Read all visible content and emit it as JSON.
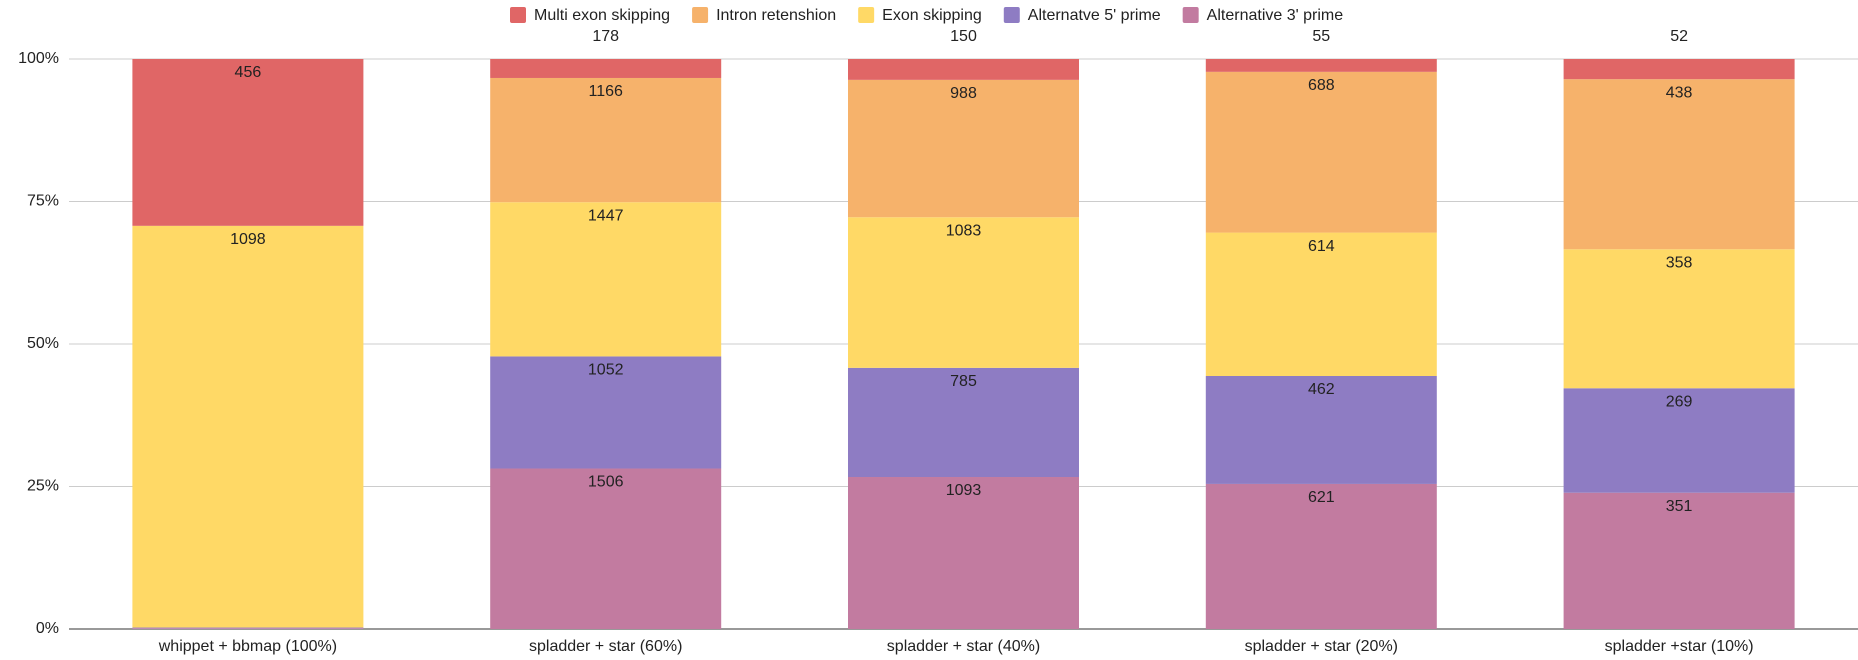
{
  "chart_data": {
    "type": "bar",
    "stacking": "percent",
    "categories": [
      "whippet + bbmap (100%)",
      "spladder + star (60%)",
      "spladder + star (40%)",
      "spladder + star (20%)",
      "spladder +star (10%)"
    ],
    "series": [
      {
        "name": "Multi exon skipping",
        "color": "#e06666",
        "values": [
          456,
          178,
          150,
          55,
          52
        ]
      },
      {
        "name": "Intron retenshion",
        "color": "#f6b26b",
        "values": [
          0,
          1166,
          988,
          688,
          438
        ]
      },
      {
        "name": "Exon skipping",
        "color": "#ffd966",
        "values": [
          1098,
          1447,
          1083,
          614,
          358
        ]
      },
      {
        "name": "Alternatve 5' prime",
        "color": "#8e7cc3",
        "values": [
          2,
          1052,
          785,
          462,
          269
        ]
      },
      {
        "name": "Alternative 3' prime",
        "color": "#c27ba0",
        "values": [
          2,
          1506,
          1093,
          621,
          351
        ]
      }
    ],
    "ylim": [
      0,
      100
    ],
    "yticks": [
      {
        "value": 0,
        "label": "0%"
      },
      {
        "value": 25,
        "label": "25%"
      },
      {
        "value": 50,
        "label": "50%"
      },
      {
        "value": 75,
        "label": "75%"
      },
      {
        "value": 100,
        "label": "100%"
      }
    ],
    "grid": true,
    "legend": "top"
  }
}
